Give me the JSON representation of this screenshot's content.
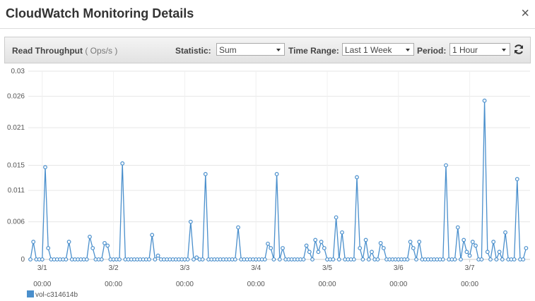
{
  "header": {
    "title": "CloudWatch Monitoring Details",
    "close": "×"
  },
  "toolbar": {
    "metric": "Read Throughput",
    "unit": "( Ops/s )",
    "statistic_label": "Statistic:",
    "statistic": "Sum",
    "time_range_label": "Time Range:",
    "time_range": "Last 1 Week",
    "period_label": "Period:",
    "period": "1 Hour"
  },
  "chart_data": {
    "type": "line",
    "categories": [
      null,
      null,
      null,
      null,
      "3/1 00:00",
      null,
      null,
      null,
      null,
      null,
      null,
      null,
      null,
      null,
      null,
      null,
      null,
      null,
      null,
      null,
      null,
      null,
      null,
      null,
      null,
      null,
      null,
      null,
      "3/2 00:00",
      null,
      null,
      null,
      null,
      null,
      null,
      null,
      null,
      null,
      null,
      null,
      null,
      null,
      null,
      null,
      null,
      null,
      null,
      null,
      null,
      null,
      null,
      null,
      "3/3 00:00",
      null,
      null,
      null,
      null,
      null,
      null,
      null,
      null,
      null,
      null,
      null,
      null,
      null,
      null,
      null,
      null,
      null,
      null,
      null,
      null,
      null,
      null,
      null,
      "3/4 00:00",
      null,
      null,
      null,
      null,
      null,
      null,
      null,
      null,
      null,
      null,
      null,
      null,
      null,
      null,
      null,
      null,
      null,
      null,
      null,
      null,
      null,
      null,
      null,
      "3/5 00:00",
      null,
      null,
      null,
      null,
      null,
      null,
      null,
      null,
      null,
      null,
      null,
      null,
      null,
      null,
      null,
      null,
      null,
      null,
      null,
      null,
      null,
      null,
      null,
      "3/6 00:00",
      null,
      null,
      null,
      null,
      null,
      null,
      null,
      null,
      null,
      null,
      null,
      null,
      null,
      null,
      null,
      null,
      null,
      null,
      null,
      null,
      null,
      null,
      null,
      "3/7 00:00",
      null,
      null,
      null,
      null,
      null,
      null,
      null,
      null,
      null,
      null,
      null,
      null,
      null,
      null,
      null,
      null,
      null,
      null,
      null
    ],
    "series": [
      {
        "name": "vol-c314614b",
        "color": "#4a8fcc",
        "values": [
          0,
          0.0028,
          0,
          0,
          0,
          0.0147,
          0.0018,
          0,
          0,
          0,
          0,
          0,
          0,
          0.0028,
          0,
          0,
          0,
          0,
          0,
          0,
          0.0036,
          0.0018,
          0,
          0,
          0,
          0.0026,
          0.0022,
          0,
          0,
          0,
          0,
          0.0153,
          0,
          0,
          0,
          0,
          0,
          0,
          0,
          0,
          0,
          0.0039,
          0,
          0.0006,
          0,
          0,
          0,
          0,
          0,
          0,
          0,
          0,
          0,
          0,
          0.006,
          0,
          0.0003,
          0,
          0,
          0.0136,
          0,
          0,
          0,
          0,
          0,
          0,
          0,
          0,
          0,
          0,
          0.0051,
          0,
          0,
          0,
          0,
          0,
          0,
          0,
          0,
          0,
          0.0025,
          0.0018,
          0,
          0.0136,
          0,
          0.0018,
          0,
          0,
          0,
          0,
          0,
          0,
          0,
          0.0022,
          0.0012,
          0,
          0.0031,
          0.0012,
          0.0028,
          0.0018,
          0,
          0,
          0,
          0.0067,
          0,
          0.0043,
          0,
          0,
          0,
          0,
          0.0131,
          0.0018,
          0,
          0.0031,
          0,
          0.0012,
          0,
          0,
          0.0026,
          0.0018,
          0,
          0,
          0,
          0,
          0,
          0,
          0,
          0,
          0.0028,
          0.0018,
          0,
          0.0028,
          0,
          0,
          0,
          0,
          0,
          0,
          0,
          0,
          0.015,
          0,
          0,
          0,
          0.0051,
          0,
          0.0031,
          0.0012,
          0.0006,
          0.0028,
          0.0022,
          0,
          0,
          0.0253,
          0.0012,
          0,
          0.0028,
          0,
          0.0012,
          0,
          0.0043,
          0,
          0,
          0,
          0.0128,
          0,
          0,
          0.0018
        ]
      }
    ],
    "ylim": [
      0,
      0.03
    ],
    "yticks": [
      0,
      0.006,
      0.011,
      0.015,
      0.021,
      0.026,
      0.03
    ],
    "grid": true
  }
}
